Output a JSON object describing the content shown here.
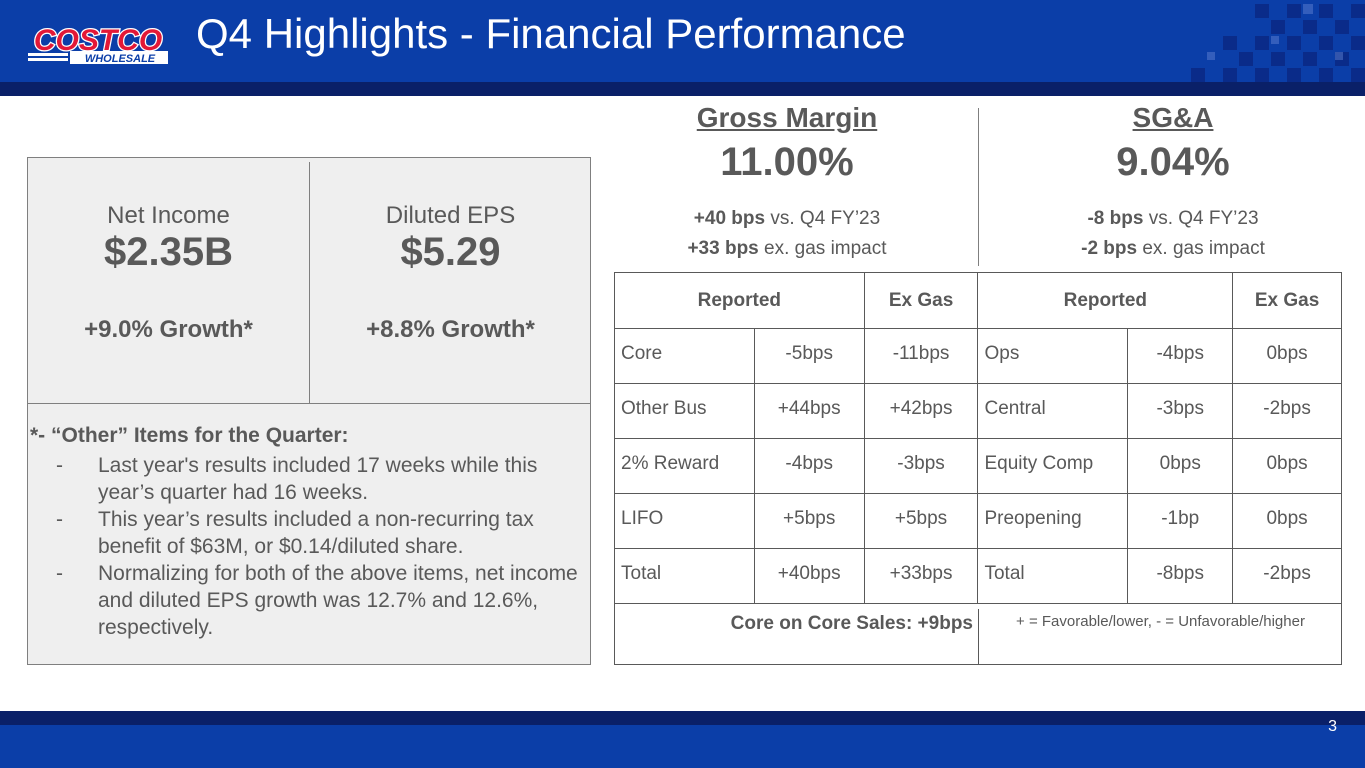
{
  "header": {
    "title": "Q4 Highlights - Financial Performance",
    "logo_top": "COSTCO",
    "logo_bottom": "WHOLESALE"
  },
  "colors": {
    "brand_blue": "#0b3ea8",
    "brand_red": "#e31837",
    "dark_navy": "#0a2068",
    "panel_bg": "#efefef",
    "text": "#595959"
  },
  "metrics": [
    {
      "label": "Net Income",
      "value": "$2.35B",
      "growth": "+9.0% Growth*"
    },
    {
      "label": "Diluted EPS",
      "value": "$5.29",
      "growth": "+8.8% Growth*"
    }
  ],
  "notes": {
    "heading": "*- “Other” Items for the Quarter:",
    "bullet": "-",
    "items": [
      "Last year's results included 17 weeks while this year’s quarter had 16 weeks.",
      "This year’s results included a non-recurring tax benefit of $63M, or $0.14/diluted share.",
      "Normalizing for both of the above items, net income and diluted EPS growth was 12.7% and 12.6%, respectively."
    ]
  },
  "gross_margin": {
    "title": "Gross Margin",
    "value": "11.00%",
    "line1_bold": "+40 bps",
    "line1_rest": " vs. Q4 FY’23",
    "line2_bold": "+33 bps",
    "line2_rest": " ex. gas impact"
  },
  "sga": {
    "title": "SG&A",
    "value": "9.04%",
    "line1_bold": "-8 bps",
    "line1_rest": " vs. Q4 FY’23",
    "line2_bold": "-2 bps",
    "line2_rest": " ex. gas impact"
  },
  "table": {
    "headers": {
      "gm_reported": "Reported",
      "gm_ex_gas": "Ex Gas",
      "sga_reported": "Reported",
      "sga_ex_gas": "Ex Gas"
    },
    "rows": [
      {
        "gm_label": "Core",
        "gm_reported": "-5bps",
        "gm_ex_gas": "-11bps",
        "sga_label": "Ops",
        "sga_reported": "-4bps",
        "sga_ex_gas": "0bps"
      },
      {
        "gm_label": "Other Bus",
        "gm_reported": "+44bps",
        "gm_ex_gas": "+42bps",
        "sga_label": "Central",
        "sga_reported": "-3bps",
        "sga_ex_gas": "-2bps"
      },
      {
        "gm_label": "2% Reward",
        "gm_reported": "-4bps",
        "gm_ex_gas": "-3bps",
        "sga_label": "Equity Comp",
        "sga_reported": "0bps",
        "sga_ex_gas": "0bps"
      },
      {
        "gm_label": "LIFO",
        "gm_reported": "+5bps",
        "gm_ex_gas": "+5bps",
        "sga_label": "Preopening",
        "sga_reported": "-1bp",
        "sga_ex_gas": "0bps"
      },
      {
        "gm_label": "Total",
        "gm_reported": "+40bps",
        "gm_ex_gas": "+33bps",
        "sga_label": "Total",
        "sga_reported": "-8bps",
        "sga_ex_gas": "-2bps"
      }
    ],
    "footer_left": "Core on Core Sales: +9bps",
    "footer_right": "+ = Favorable/lower, - = Unfavorable/higher"
  },
  "page_number": "3"
}
